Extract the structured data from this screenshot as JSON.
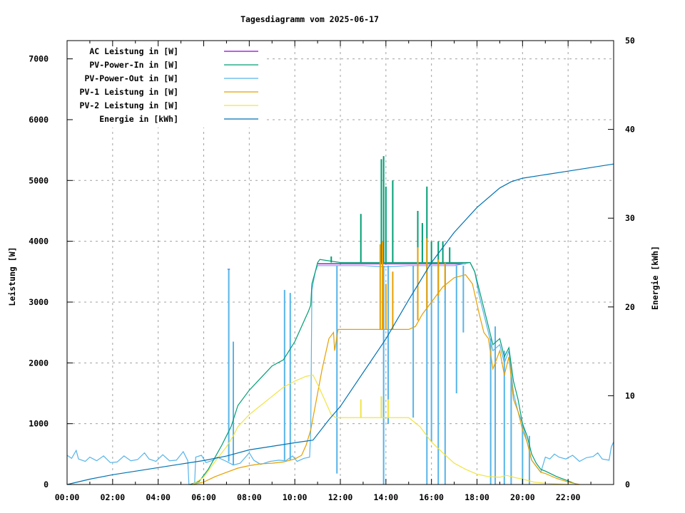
{
  "chart_data": {
    "type": "line",
    "title": "Tagesdiagramm vom 2025-06-17",
    "ylabel": "Leistung [W]",
    "y2label": "Energie [kWh]",
    "xlim_hours": [
      0,
      24
    ],
    "ylim": [
      0,
      7300
    ],
    "y2lim": [
      0,
      50
    ],
    "grid": true,
    "legend_position": "top-left",
    "x_tick_labels": [
      "00:00",
      "02:00",
      "04:00",
      "06:00",
      "08:00",
      "10:00",
      "12:00",
      "14:00",
      "16:00",
      "18:00",
      "20:00",
      "22:00"
    ],
    "y_ticks": [
      0,
      1000,
      2000,
      3000,
      4000,
      5000,
      6000,
      7000
    ],
    "y2_ticks": [
      0,
      10,
      20,
      30,
      40,
      50
    ],
    "series": [
      {
        "name": "AC Leistung in [W]",
        "color": "#9400d3",
        "axis": "left",
        "points": [
          [
            7.05,
            3540
          ],
          [
            7.15,
            3540
          ],
          [
            11.0,
            3630
          ],
          [
            17.5,
            3630
          ]
        ],
        "spikes": []
      },
      {
        "name": "PV-Power-In in [W]",
        "color": "#009e73",
        "axis": "left",
        "points": [
          [
            5.4,
            0
          ],
          [
            5.8,
            50
          ],
          [
            6.2,
            250
          ],
          [
            6.5,
            450
          ],
          [
            6.8,
            650
          ],
          [
            7,
            800
          ],
          [
            7.2,
            950
          ],
          [
            7.5,
            1300
          ],
          [
            8,
            1550
          ],
          [
            8.5,
            1750
          ],
          [
            9,
            1950
          ],
          [
            9.5,
            2050
          ],
          [
            10,
            2350
          ],
          [
            10.3,
            2600
          ],
          [
            10.6,
            2850
          ],
          [
            10.7,
            2950
          ],
          [
            10.75,
            3300
          ],
          [
            10.9,
            3500
          ],
          [
            11.0,
            3650
          ],
          [
            11.1,
            3700
          ],
          [
            12,
            3650
          ],
          [
            17.7,
            3650
          ],
          [
            17.9,
            3500
          ],
          [
            18.1,
            3200
          ],
          [
            18.3,
            2900
          ],
          [
            18.5,
            2600
          ],
          [
            18.7,
            2300
          ],
          [
            19,
            2400
          ],
          [
            19.2,
            2100
          ],
          [
            19.4,
            2250
          ],
          [
            19.6,
            1700
          ],
          [
            19.8,
            1400
          ],
          [
            20,
            1000
          ],
          [
            20.2,
            800
          ],
          [
            20.4,
            500
          ],
          [
            20.6,
            350
          ],
          [
            20.8,
            250
          ],
          [
            21,
            220
          ],
          [
            21.5,
            130
          ],
          [
            22,
            60
          ],
          [
            22.4,
            0
          ]
        ],
        "spikes": [
          [
            11.6,
            3650,
            3750
          ],
          [
            12.9,
            3650,
            4450
          ],
          [
            13.8,
            3650,
            5350
          ],
          [
            13.9,
            3650,
            5400
          ],
          [
            14.0,
            3650,
            4900
          ],
          [
            14.3,
            3650,
            5000
          ],
          [
            15.4,
            3650,
            4500
          ],
          [
            15.6,
            3650,
            4300
          ],
          [
            15.8,
            3650,
            4900
          ],
          [
            16.0,
            3650,
            4000
          ],
          [
            16.3,
            3650,
            4000
          ],
          [
            16.5,
            3650,
            4000
          ],
          [
            16.8,
            3650,
            3900
          ]
        ]
      },
      {
        "name": "PV-Power-Out in [W]",
        "color": "#56b4e9",
        "axis": "left",
        "points": [
          [
            0,
            480
          ],
          [
            0.2,
            430
          ],
          [
            0.4,
            560
          ],
          [
            0.5,
            420
          ],
          [
            0.8,
            380
          ],
          [
            1,
            450
          ],
          [
            1.3,
            390
          ],
          [
            1.6,
            470
          ],
          [
            1.9,
            360
          ],
          [
            2.2,
            370
          ],
          [
            2.5,
            470
          ],
          [
            2.8,
            390
          ],
          [
            3.1,
            410
          ],
          [
            3.4,
            520
          ],
          [
            3.6,
            420
          ],
          [
            3.9,
            380
          ],
          [
            4.2,
            490
          ],
          [
            4.5,
            390
          ],
          [
            4.8,
            400
          ],
          [
            5.1,
            540
          ],
          [
            5.3,
            390
          ],
          [
            5.35,
            0
          ],
          [
            5.6,
            0
          ],
          [
            5.65,
            450
          ],
          [
            5.9,
            480
          ],
          [
            6.1,
            360
          ],
          [
            6.4,
            400
          ],
          [
            6.6,
            450
          ],
          [
            7.0,
            380
          ],
          [
            7.3,
            320
          ],
          [
            7.6,
            350
          ],
          [
            8.0,
            520
          ],
          [
            8.2,
            400
          ],
          [
            8.5,
            330
          ],
          [
            8.9,
            380
          ],
          [
            9.3,
            400
          ],
          [
            9.6,
            390
          ],
          [
            9.9,
            470
          ],
          [
            10.1,
            380
          ],
          [
            10.4,
            430
          ],
          [
            10.65,
            450
          ],
          [
            10.7,
            900
          ],
          [
            10.75,
            3200
          ],
          [
            10.9,
            3500
          ],
          [
            11.0,
            3600
          ],
          [
            13,
            3600
          ],
          [
            14,
            3580
          ],
          [
            15,
            3600
          ],
          [
            16,
            3600
          ],
          [
            17,
            3600
          ],
          [
            17.7,
            3650
          ],
          [
            17.9,
            3500
          ],
          [
            18.1,
            3100
          ],
          [
            18.3,
            2800
          ],
          [
            18.5,
            2500
          ],
          [
            18.7,
            2200
          ],
          [
            19,
            2300
          ],
          [
            19.2,
            2000
          ],
          [
            19.4,
            2200
          ],
          [
            19.6,
            1500
          ],
          [
            19.8,
            1200
          ],
          [
            20,
            1000
          ],
          [
            20.2,
            700
          ],
          [
            20.4,
            400
          ],
          [
            20.6,
            300
          ],
          [
            20.8,
            200
          ],
          [
            21,
            450
          ],
          [
            21.2,
            420
          ],
          [
            21.4,
            500
          ],
          [
            21.6,
            450
          ],
          [
            21.9,
            420
          ],
          [
            22.2,
            480
          ],
          [
            22.5,
            380
          ],
          [
            22.8,
            440
          ],
          [
            23.1,
            460
          ],
          [
            23.3,
            520
          ],
          [
            23.5,
            420
          ],
          [
            23.8,
            400
          ],
          [
            23.9,
            620
          ],
          [
            24,
            700
          ]
        ],
        "spikes": [
          [
            7.1,
            380,
            3550
          ],
          [
            7.3,
            320,
            2350
          ],
          [
            9.55,
            400,
            3200
          ],
          [
            9.8,
            400,
            3150
          ],
          [
            11.85,
            3600,
            180
          ],
          [
            13.9,
            3600,
            0
          ],
          [
            14.1,
            3600,
            1000
          ],
          [
            15.2,
            3600,
            1100
          ],
          [
            15.8,
            3600,
            0
          ],
          [
            16.0,
            3600,
            700
          ],
          [
            16.3,
            3600,
            0
          ],
          [
            16.6,
            3600,
            0
          ],
          [
            17.1,
            3600,
            1500
          ],
          [
            17.4,
            3600,
            2500
          ],
          [
            18.6,
            2400,
            0
          ],
          [
            18.8,
            2600,
            0
          ],
          [
            19.2,
            2200,
            0
          ],
          [
            19.5,
            1800,
            0
          ],
          [
            20.0,
            1000,
            0
          ],
          [
            20.3,
            800,
            0
          ]
        ]
      },
      {
        "name": "PV-1 Leistung in [W]",
        "color": "#e69f00",
        "axis": "left",
        "points": [
          [
            5.5,
            0
          ],
          [
            6,
            40
          ],
          [
            6.5,
            130
          ],
          [
            7,
            200
          ],
          [
            7.5,
            270
          ],
          [
            8,
            310
          ],
          [
            8.5,
            340
          ],
          [
            9,
            350
          ],
          [
            9.5,
            370
          ],
          [
            10,
            420
          ],
          [
            10.3,
            480
          ],
          [
            10.5,
            650
          ],
          [
            10.7,
            900
          ],
          [
            10.9,
            1300
          ],
          [
            11.2,
            1900
          ],
          [
            11.5,
            2400
          ],
          [
            11.7,
            2500
          ],
          [
            11.75,
            2200
          ],
          [
            11.9,
            2550
          ],
          [
            15,
            2550
          ],
          [
            15.3,
            2600
          ],
          [
            15.6,
            2800
          ],
          [
            16,
            3000
          ],
          [
            16.5,
            3250
          ],
          [
            17,
            3400
          ],
          [
            17.5,
            3450
          ],
          [
            17.8,
            3300
          ],
          [
            18.1,
            2800
          ],
          [
            18.3,
            2500
          ],
          [
            18.5,
            2400
          ],
          [
            18.7,
            1900
          ],
          [
            19,
            2200
          ],
          [
            19.2,
            1800
          ],
          [
            19.4,
            2100
          ],
          [
            19.6,
            1400
          ],
          [
            19.8,
            1200
          ],
          [
            20,
            900
          ],
          [
            20.2,
            700
          ],
          [
            20.4,
            400
          ],
          [
            20.6,
            300
          ],
          [
            20.8,
            200
          ],
          [
            21,
            180
          ],
          [
            21.5,
            100
          ],
          [
            22,
            40
          ],
          [
            22.5,
            0
          ]
        ],
        "spikes": [
          [
            13.75,
            2550,
            3950
          ],
          [
            13.85,
            2550,
            4000
          ],
          [
            14.0,
            2550,
            3300
          ],
          [
            14.3,
            2550,
            3500
          ],
          [
            15.4,
            2700,
            3900
          ],
          [
            15.8,
            2900,
            4050
          ],
          [
            16.3,
            3100,
            3700
          ],
          [
            16.6,
            3200,
            3650
          ]
        ]
      },
      {
        "name": "PV-2 Leistung in [W]",
        "color": "#f0e442",
        "axis": "left",
        "points": [
          [
            5.5,
            0
          ],
          [
            6,
            120
          ],
          [
            6.5,
            380
          ],
          [
            7,
            620
          ],
          [
            7.3,
            800
          ],
          [
            7.5,
            950
          ],
          [
            8,
            1150
          ],
          [
            8.5,
            1300
          ],
          [
            9,
            1450
          ],
          [
            9.5,
            1600
          ],
          [
            10,
            1700
          ],
          [
            10.5,
            1780
          ],
          [
            10.8,
            1800
          ],
          [
            11,
            1650
          ],
          [
            11.3,
            1400
          ],
          [
            11.6,
            1150
          ],
          [
            11.8,
            1100
          ],
          [
            15,
            1100
          ],
          [
            15.5,
            950
          ],
          [
            16,
            700
          ],
          [
            16.5,
            520
          ],
          [
            17,
            350
          ],
          [
            17.5,
            250
          ],
          [
            18,
            170
          ],
          [
            18.5,
            130
          ],
          [
            19,
            120
          ],
          [
            19.3,
            150
          ],
          [
            19.7,
            110
          ],
          [
            20,
            90
          ],
          [
            20.5,
            40
          ],
          [
            21,
            20
          ],
          [
            22,
            0
          ]
        ],
        "spikes": [
          [
            12.9,
            1100,
            1400
          ],
          [
            13.8,
            1100,
            1450
          ],
          [
            14.1,
            1100,
            1400
          ]
        ]
      },
      {
        "name": "Energie in [kWh]",
        "color": "#0072b2",
        "axis": "right",
        "points": [
          [
            0,
            0
          ],
          [
            1,
            0.6
          ],
          [
            2,
            1.1
          ],
          [
            3,
            1.5
          ],
          [
            4,
            1.9
          ],
          [
            5,
            2.3
          ],
          [
            6,
            2.7
          ],
          [
            7,
            3.2
          ],
          [
            8,
            3.9
          ],
          [
            9,
            4.3
          ],
          [
            10,
            4.7
          ],
          [
            10.8,
            5.0
          ],
          [
            11.5,
            7.3
          ],
          [
            12,
            8.8
          ],
          [
            13,
            12.6
          ],
          [
            14,
            16.4
          ],
          [
            15,
            20.8
          ],
          [
            16,
            25.0
          ],
          [
            17,
            28.4
          ],
          [
            18,
            31.2
          ],
          [
            19,
            33.4
          ],
          [
            19.5,
            34.1
          ],
          [
            20,
            34.5
          ],
          [
            21,
            34.9
          ],
          [
            22,
            35.3
          ],
          [
            23,
            35.7
          ],
          [
            24,
            36.1
          ]
        ],
        "spikes": []
      }
    ]
  }
}
